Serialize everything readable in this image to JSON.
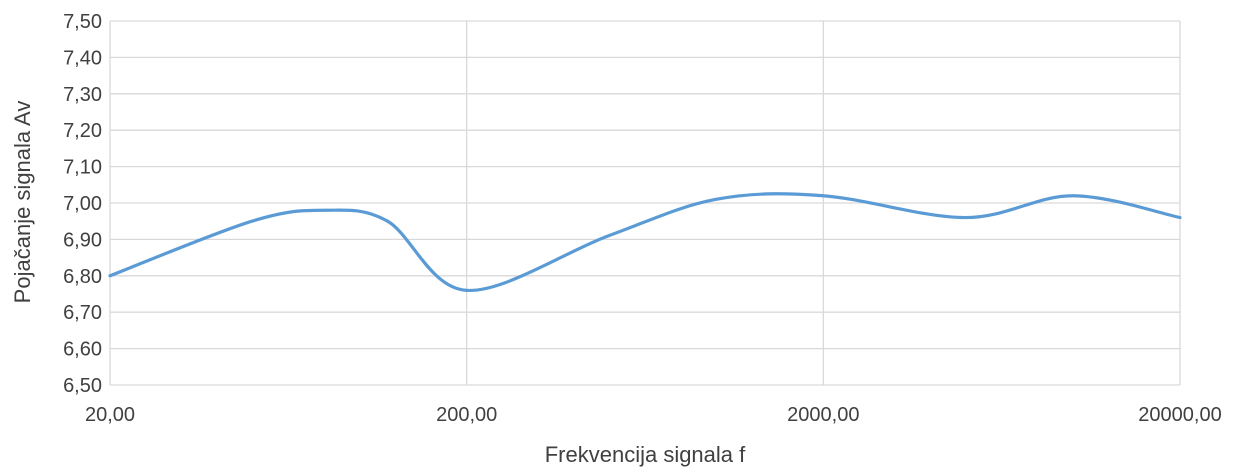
{
  "chart_data": {
    "type": "line",
    "title": "",
    "xlabel": "Frekvencija signala f",
    "ylabel": "Pojačanje signala Av",
    "x_scale": "log",
    "xlim": [
      20,
      20000
    ],
    "ylim": [
      6.5,
      7.5
    ],
    "grid": true,
    "smooth": true,
    "x_tick_values": [
      20,
      200,
      2000,
      20000
    ],
    "x_tick_labels": [
      "20,00",
      "200,00",
      "2000,00",
      "20000,00"
    ],
    "y_tick_values": [
      6.5,
      6.6,
      6.7,
      6.8,
      6.9,
      7.0,
      7.1,
      7.2,
      7.3,
      7.4,
      7.5
    ],
    "y_tick_labels": [
      "6,50",
      "6,60",
      "6,70",
      "6,80",
      "6,90",
      "7,00",
      "7,10",
      "7,20",
      "7,30",
      "7,40",
      "7,50"
    ],
    "series": [
      {
        "color": "#5b9bd5",
        "x": [
          20,
          50,
          80,
          120,
          200,
          500,
          1000,
          2000,
          5000,
          10000,
          20000
        ],
        "y": [
          6.8,
          6.95,
          6.98,
          6.95,
          6.76,
          6.91,
          7.01,
          7.02,
          6.96,
          7.02,
          6.96
        ]
      }
    ]
  }
}
